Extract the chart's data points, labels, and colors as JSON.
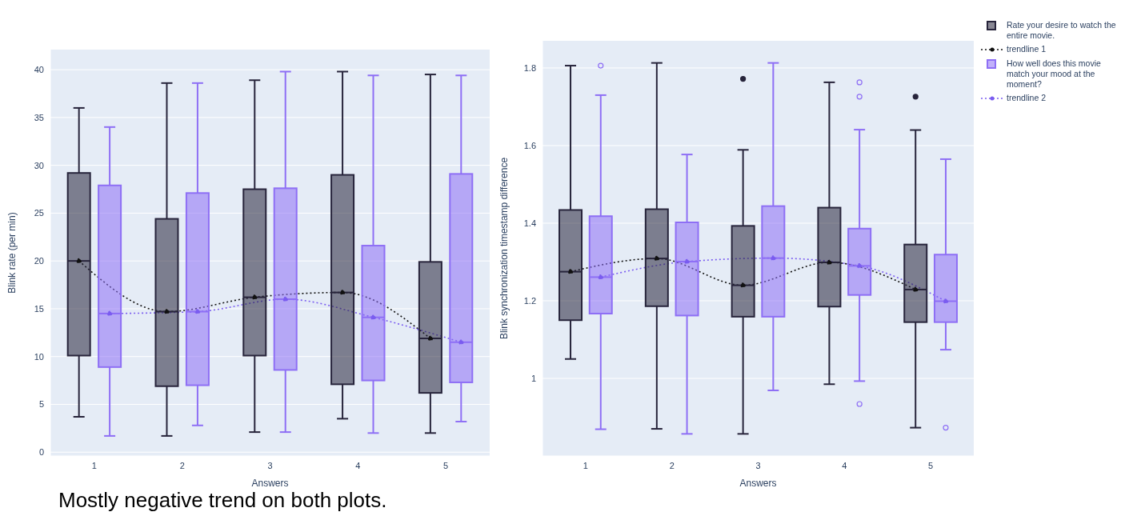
{
  "chart_data": [
    {
      "type": "box",
      "xlabel": "Answers",
      "ylabel": "Blink rate (per min)",
      "categories": [
        "1",
        "2",
        "3",
        "4",
        "5"
      ],
      "ylim": [
        -0.4,
        42.1
      ],
      "yticks": [
        0,
        5,
        10,
        15,
        20,
        25,
        30,
        35,
        40
      ],
      "grid": "y",
      "legend": false,
      "annotations": [
        "Mostly negative trend on both plots."
      ],
      "series": [
        {
          "color": "#27243b",
          "boxes": [
            {
              "low": 3.7,
              "q1": 10.1,
              "median": 20.0,
              "q3": 29.2,
              "high": 36.0
            },
            {
              "low": 1.7,
              "q1": 6.9,
              "median": 14.7,
              "q3": 24.4,
              "high": 38.6
            },
            {
              "low": 2.1,
              "q1": 10.1,
              "median": 16.2,
              "q3": 27.5,
              "high": 38.9
            },
            {
              "low": 3.5,
              "q1": 7.1,
              "median": 16.7,
              "q3": 29.0,
              "high": 39.8
            },
            {
              "low": 2.0,
              "q1": 6.2,
              "median": 11.9,
              "q3": 19.9,
              "high": 39.5
            }
          ]
        },
        {
          "type": "line",
          "color": "#111111",
          "values": [
            20.0,
            14.7,
            16.2,
            16.7,
            11.9
          ],
          "line_style": "dotted",
          "marker": "circle"
        },
        {
          "color": "#8e6ff5",
          "boxes": [
            {
              "low": 1.7,
              "q1": 8.9,
              "median": 14.5,
              "q3": 27.9,
              "high": 34.0
            },
            {
              "low": 2.8,
              "q1": 7.0,
              "median": 14.7,
              "q3": 27.1,
              "high": 38.6
            },
            {
              "low": 2.1,
              "q1": 8.6,
              "median": 16.0,
              "q3": 27.6,
              "high": 39.8
            },
            {
              "low": 2.0,
              "q1": 7.5,
              "median": 14.1,
              "q3": 21.6,
              "high": 39.4
            },
            {
              "low": 3.2,
              "q1": 7.3,
              "median": 11.5,
              "q3": 29.1,
              "high": 39.4
            }
          ]
        },
        {
          "type": "line",
          "color": "#7a5cf0",
          "values": [
            14.5,
            14.7,
            16.0,
            14.1,
            11.5
          ],
          "line_style": "dotted",
          "marker": "circle"
        }
      ]
    },
    {
      "type": "box",
      "xlabel": "Answers",
      "ylabel": "Blink synchronization timestamp difference",
      "categories": [
        "1",
        "2",
        "3",
        "4",
        "5"
      ],
      "ylim": [
        0.8,
        1.87
      ],
      "yticks": [
        1,
        1.2,
        1.4,
        1.6,
        1.8
      ],
      "grid": "y",
      "legend": "top right",
      "series": [
        {
          "name": "Rate your desire to watch the entire movie.",
          "color": "#27243b",
          "boxes": [
            {
              "low": 1.05,
              "q1": 1.15,
              "median": 1.275,
              "q3": 1.434,
              "high": 1.806
            },
            {
              "low": 0.87,
              "q1": 1.186,
              "median": 1.309,
              "q3": 1.436,
              "high": 1.813
            },
            {
              "low": 0.857,
              "q1": 1.159,
              "median": 1.24,
              "q3": 1.393,
              "high": 1.589,
              "outliers": [
                1.772
              ]
            },
            {
              "low": 0.985,
              "q1": 1.185,
              "median": 1.299,
              "q3": 1.44,
              "high": 1.763
            },
            {
              "low": 0.873,
              "q1": 1.145,
              "median": 1.229,
              "q3": 1.345,
              "high": 1.64,
              "outliers": [
                1.726
              ]
            }
          ]
        },
        {
          "name": "trendline 1",
          "type": "line",
          "color": "#111111",
          "values": [
            1.275,
            1.309,
            1.24,
            1.299,
            1.229
          ],
          "line_style": "dotted",
          "marker": "circle"
        },
        {
          "name": "How well does this movie match your mood at the moment?",
          "color": "#8e6ff5",
          "boxes": [
            {
              "low": 0.869,
              "q1": 1.167,
              "median": 1.261,
              "q3": 1.418,
              "high": 1.73,
              "outliers": [
                1.806
              ]
            },
            {
              "low": 0.857,
              "q1": 1.162,
              "median": 1.301,
              "q3": 1.402,
              "high": 1.577
            },
            {
              "low": 0.969,
              "q1": 1.159,
              "median": 1.31,
              "q3": 1.444,
              "high": 1.813
            },
            {
              "low": 0.993,
              "q1": 1.215,
              "median": 1.29,
              "q3": 1.386,
              "high": 1.641,
              "outliers": [
                1.763,
                1.726,
                0.934
              ]
            },
            {
              "low": 1.074,
              "q1": 1.145,
              "median": 1.199,
              "q3": 1.319,
              "high": 1.565,
              "outliers": [
                0.873
              ]
            }
          ]
        },
        {
          "name": "trendline 2",
          "type": "line",
          "color": "#7a5cf0",
          "values": [
            1.261,
            1.301,
            1.31,
            1.29,
            1.199
          ],
          "line_style": "dotted",
          "marker": "circle"
        }
      ]
    }
  ]
}
